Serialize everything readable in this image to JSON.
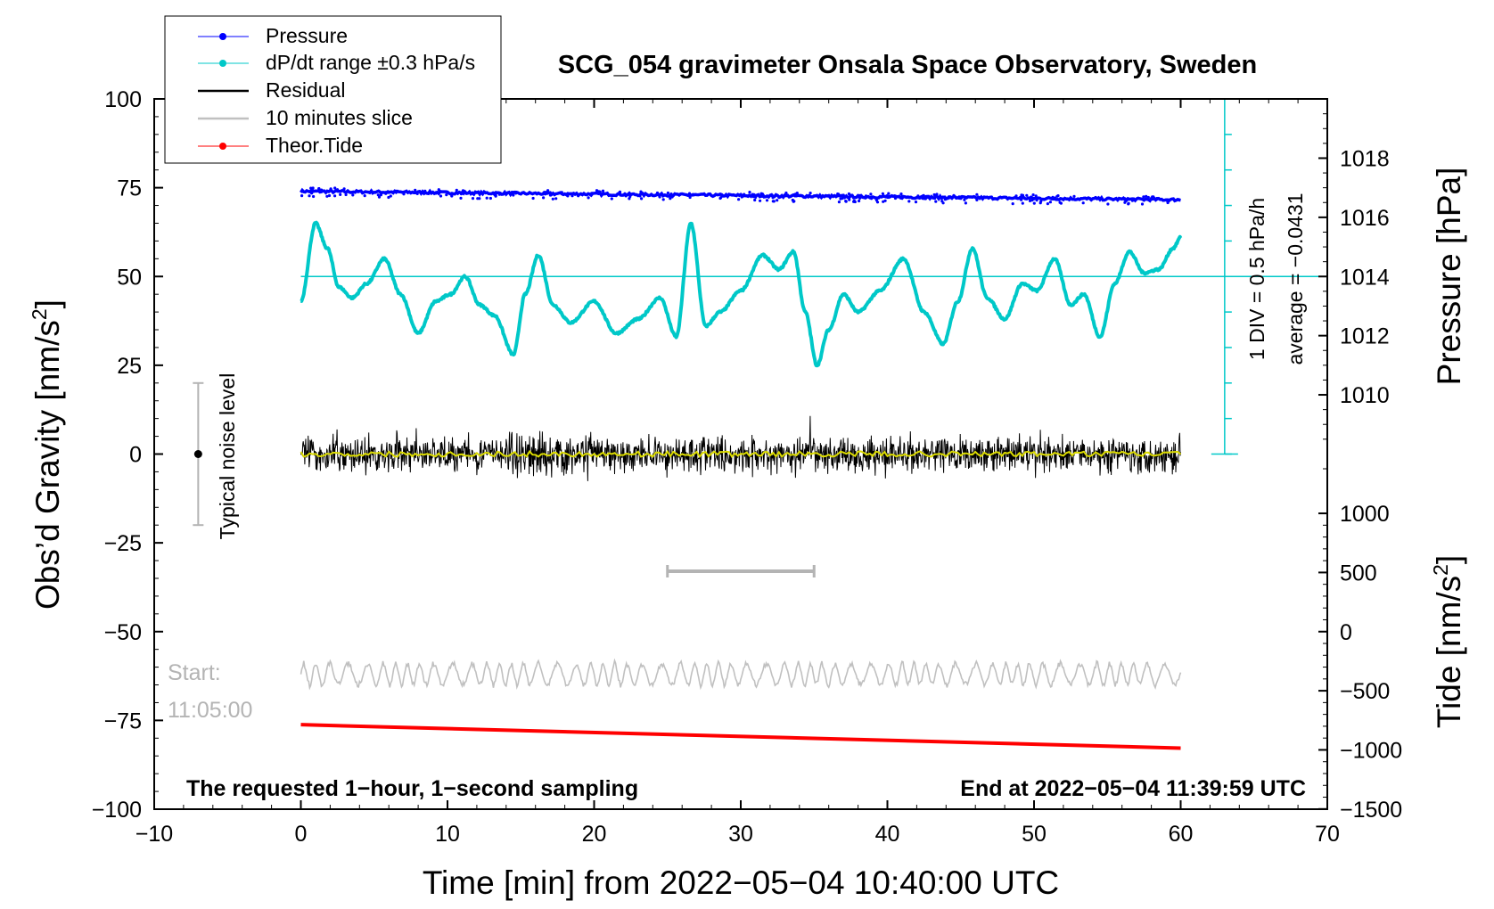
{
  "chart_data": {
    "type": "line",
    "title": "SCG_054 gravimeter Onsala Space Observatory, Sweden",
    "xlabel": "Time [min] from 2022−05−04 10:40:00 UTC",
    "ylabel_left": "Obs’d Gravity [nm/s",
    "ylabel_left_sup": "2",
    "ylabel_left_end": "]",
    "ylabel_right_top": "Pressure [hPa]",
    "ylabel_right_bottom": "Tide [nm/s",
    "ylabel_right_bottom_sup": "2",
    "ylabel_right_bottom_end": "]",
    "xlim": [
      -10,
      70
    ],
    "ylim_left": [
      -100,
      100
    ],
    "x_ticks": [
      -10,
      0,
      10,
      20,
      30,
      40,
      50,
      60,
      70
    ],
    "x_tick_labels": [
      "−10",
      "0",
      "10",
      "20",
      "30",
      "40",
      "50",
      "60",
      "70"
    ],
    "y_left_ticks": [
      100,
      75,
      50,
      25,
      0,
      -25,
      -50,
      -75,
      -100
    ],
    "y_left_tick_labels": [
      "100",
      "75",
      "50",
      "25",
      "0",
      "−25",
      "−50",
      "−75",
      "−100"
    ],
    "pressure_axis": {
      "ticks": [
        1018,
        1016,
        1014,
        1012,
        1010
      ],
      "labels": [
        "1018",
        "1016",
        "1014",
        "1012",
        "1010"
      ],
      "gravity_at_1014": 50,
      "gravity_per_hPa": 8.33
    },
    "tide_axis": {
      "ticks": [
        1000,
        500,
        0,
        -500,
        -1000,
        -1500
      ],
      "labels": [
        "1000",
        "500",
        "0",
        "−500",
        "−1000",
        "−1500"
      ],
      "gravity_at_0": -50,
      "gravity_per_unit": 0.0333
    },
    "series": [
      {
        "name": "Pressure",
        "color": "#0000ff",
        "x": [
          0,
          60
        ],
        "y": [
          74,
          71.6
        ]
      },
      {
        "name": "dP/dt range ±0.3 hPa/s",
        "color": "#00c8c8",
        "x": [
          0,
          1,
          1.8,
          2.6,
          3.5,
          4.5,
          5.7,
          6.8,
          8,
          9.2,
          10.2,
          11.2,
          12.2,
          13.2,
          14.5,
          15.3,
          16.2,
          17.2,
          18.4,
          20,
          21.5,
          23,
          24.5,
          25.6,
          26.6,
          27.6,
          28.6,
          30,
          31.5,
          32.6,
          33.6,
          34.4,
          35.2,
          36,
          37,
          38,
          39.5,
          41.1,
          42.5,
          43.8,
          44.8,
          45.8,
          46.8,
          48,
          49.2,
          50.2,
          51.4,
          52.5,
          53.4,
          54.5,
          55.5,
          56.5,
          57.5,
          58.5,
          59.5,
          60
        ],
        "y": [
          43,
          65,
          58,
          47,
          44,
          48,
          55,
          45,
          34,
          43,
          45,
          50,
          42,
          39,
          28,
          45,
          56,
          42,
          37,
          43,
          34,
          38,
          44,
          33,
          65,
          36,
          40,
          46,
          56,
          52,
          57,
          40,
          25,
          35,
          45,
          40,
          46,
          55,
          40,
          31,
          43,
          58,
          44,
          38,
          48,
          46,
          55,
          42,
          45,
          33,
          48,
          57,
          51,
          52,
          58,
          61
        ]
      },
      {
        "name": "Residual",
        "color": "#000000",
        "x": [
          0,
          60
        ],
        "y": [
          0,
          0
        ]
      },
      {
        "name": "10 minutes slice",
        "color": "#c0c0c0",
        "x": [
          0,
          60
        ],
        "y": [
          -62,
          -62
        ]
      },
      {
        "name": "Theor.Tide",
        "color": "#ff0000",
        "x": [
          0,
          60
        ],
        "y": [
          -76.2,
          -82.8
        ]
      }
    ],
    "legend": {
      "position": "top-left",
      "entries": [
        "Pressure",
        "dP/dt range ±0.3 hPa/s",
        "Residual",
        "10 minutes slice",
        "Theor.Tide"
      ]
    },
    "annotations": {
      "noise_label": "Typical noise level",
      "noise_range": [
        -20,
        20
      ],
      "div_label": "1 DIV = 0.5 hPa/h",
      "average_label": "average = −0.0431",
      "start_label": "Start:",
      "start_time": "11:05:00",
      "slice_bracket_x": [
        25,
        35
      ],
      "slice_bracket_y": -33,
      "footer_left": "The requested 1−hour, 1−second sampling",
      "footer_right": "End at 2022−05−04 11:39:59 UTC"
    },
    "colors": {
      "pressure": "#0000ff",
      "dpdt": "#00c8c8",
      "residual": "#000000",
      "residual_smooth": "#dcdc00",
      "slice": "#c0c0c0",
      "tide": "#ff0000"
    }
  }
}
